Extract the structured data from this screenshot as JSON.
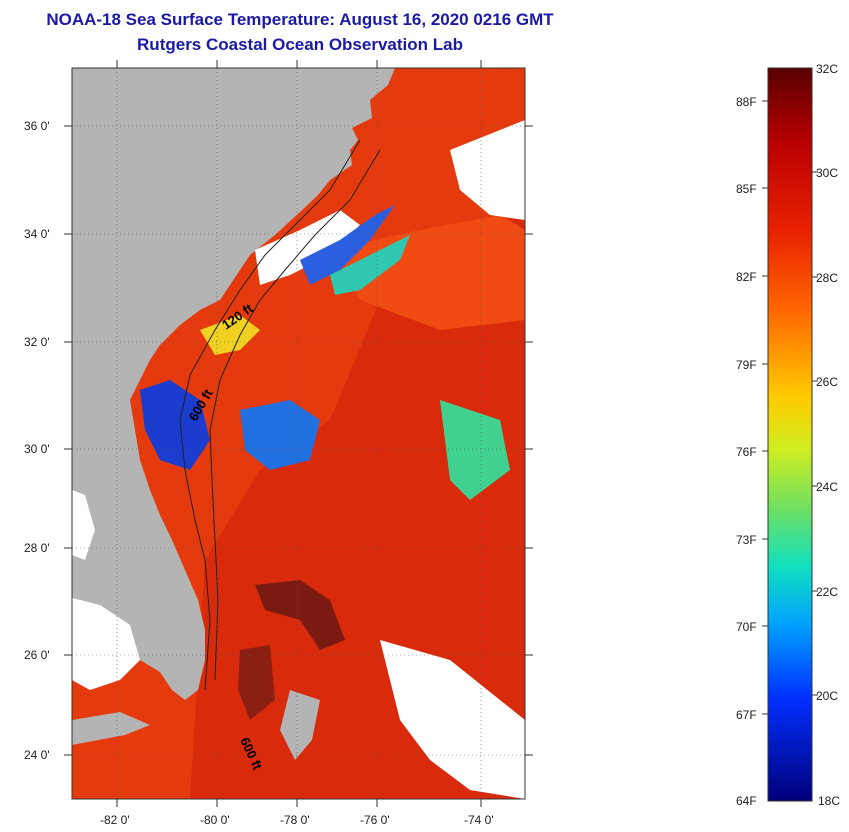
{
  "title": {
    "line1": "NOAA-18 Sea Surface Temperature:  August 16, 2020 0216 GMT",
    "line2": "Rutgers Coastal Ocean Observation Lab"
  },
  "map": {
    "lon_range": [
      -83,
      -73
    ],
    "lat_range": [
      23,
      37
    ],
    "x_ticks": [
      "-82 0'",
      "-80 0'",
      "-78 0'",
      "-76 0'",
      "-74 0'"
    ],
    "y_ticks": [
      "36 0'",
      "34 0'",
      "32 0'",
      "30 0'",
      "28 0'",
      "26 0'",
      "24 0'"
    ],
    "contour_labels": [
      "120 ft",
      "600 ft",
      "600 ft"
    ],
    "colors": {
      "land": "#b4b4b4",
      "warm_water": "#e53a0e",
      "cloud": "#ffffff"
    }
  },
  "colorbar": {
    "celsius": [
      "32C",
      "30C",
      "28C",
      "26C",
      "24C",
      "22C",
      "20C",
      "18C"
    ],
    "fahrenheit": [
      "88F",
      "85F",
      "82F",
      "79F",
      "76F",
      "73F",
      "70F",
      "67F",
      "64F"
    ],
    "range_c": [
      18,
      32
    ]
  }
}
